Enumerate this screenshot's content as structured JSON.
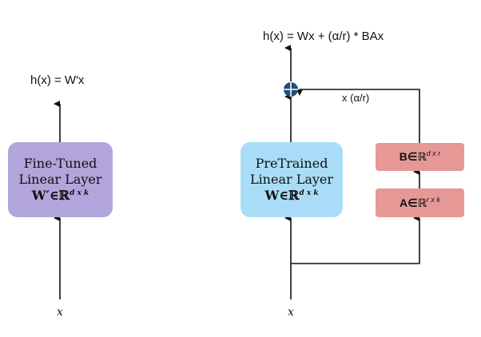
{
  "left": {
    "output_label": "h(x) = W′x",
    "box_line1": "Fine-Tuned",
    "box_line2": "Linear Layer",
    "box_line3": "W′∈ℝ",
    "box_line3_sup": "d x k",
    "input_label": "x",
    "fill_color": "#b1a5db"
  },
  "right": {
    "output_label": "h(x) = Wx + (α/r) * BAx",
    "box_line1": "PreTrained",
    "box_line2": "Linear Layer",
    "box_line3": "W∈ℝ",
    "box_line3_sup": "d x k",
    "input_label": "x",
    "fill_color": "#a9ddf7",
    "scale_label": "x (α/r)",
    "sum_icon": "plus-circle-icon",
    "sum_color": "#1f4e79",
    "b_label": "B∈ℝ",
    "b_sup": "d x r",
    "a_label": "A∈ℝ",
    "a_sup": "r x k",
    "adapter_color": "#e59895"
  }
}
